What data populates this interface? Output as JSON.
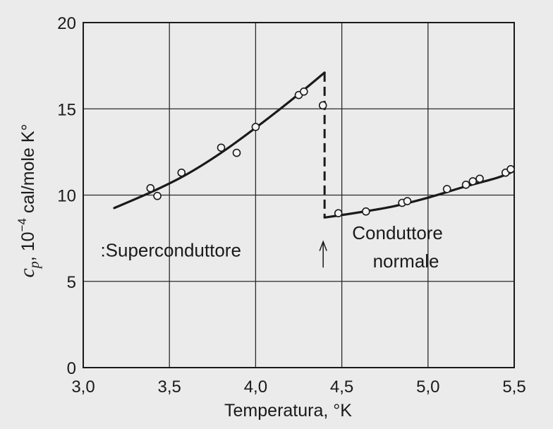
{
  "chart_data": {
    "type": "scatter",
    "title": "",
    "xlabel": "Temperatura, °K",
    "ylabel_main": "c",
    "ylabel_sub": "p",
    "ylabel_rest": ", 10",
    "ylabel_exp": "−4",
    "ylabel_unit": " cal/mole K°",
    "xlim": [
      3.0,
      5.5
    ],
    "ylim": [
      0,
      20
    ],
    "xticks": [
      3.0,
      3.5,
      4.0,
      4.5,
      5.0,
      5.5
    ],
    "xtick_labels": [
      "3,0",
      "3,5",
      "4,0",
      "4,5",
      "5,0",
      "5,5"
    ],
    "yticks": [
      0,
      5,
      10,
      15,
      20
    ],
    "ytick_labels": [
      "0",
      "5",
      "10",
      "15",
      "20"
    ],
    "grid": true,
    "transition": {
      "x": 4.4,
      "y_top": 17.1,
      "y_bottom": 8.7
    },
    "series": [
      {
        "marker": "open-circle",
        "points": [
          [
            3.39,
            10.4
          ],
          [
            3.43,
            9.95
          ],
          [
            3.57,
            11.3
          ],
          [
            3.8,
            12.75
          ],
          [
            3.89,
            12.45
          ],
          [
            4.0,
            13.95
          ],
          [
            4.25,
            15.8
          ],
          [
            4.28,
            16.0
          ],
          [
            4.39,
            15.2
          ]
        ],
        "curve": [
          [
            3.18,
            9.25
          ],
          [
            3.4,
            10.2
          ],
          [
            3.6,
            11.2
          ],
          [
            3.8,
            12.45
          ],
          [
            4.0,
            13.9
          ],
          [
            4.2,
            15.45
          ],
          [
            4.4,
            17.1
          ]
        ]
      },
      {
        "marker": "open-circle",
        "points": [
          [
            4.48,
            8.95
          ],
          [
            4.64,
            9.05
          ],
          [
            4.85,
            9.55
          ],
          [
            4.88,
            9.65
          ],
          [
            5.11,
            10.35
          ],
          [
            5.22,
            10.6
          ],
          [
            5.26,
            10.8
          ],
          [
            5.3,
            10.95
          ],
          [
            5.45,
            11.3
          ],
          [
            5.48,
            11.5
          ]
        ],
        "curve": [
          [
            4.4,
            8.7
          ],
          [
            4.6,
            9.0
          ],
          [
            4.8,
            9.35
          ],
          [
            5.0,
            9.85
          ],
          [
            5.2,
            10.45
          ],
          [
            5.4,
            11.0
          ],
          [
            5.49,
            11.35
          ]
        ]
      }
    ],
    "annotations": [
      {
        "text": ":Superconduttore",
        "x": 3.1,
        "y": 6.45
      },
      {
        "text": "Conduttore",
        "x": 4.56,
        "y": 7.45
      },
      {
        "text": "normale",
        "x": 4.68,
        "y": 5.8
      }
    ]
  }
}
